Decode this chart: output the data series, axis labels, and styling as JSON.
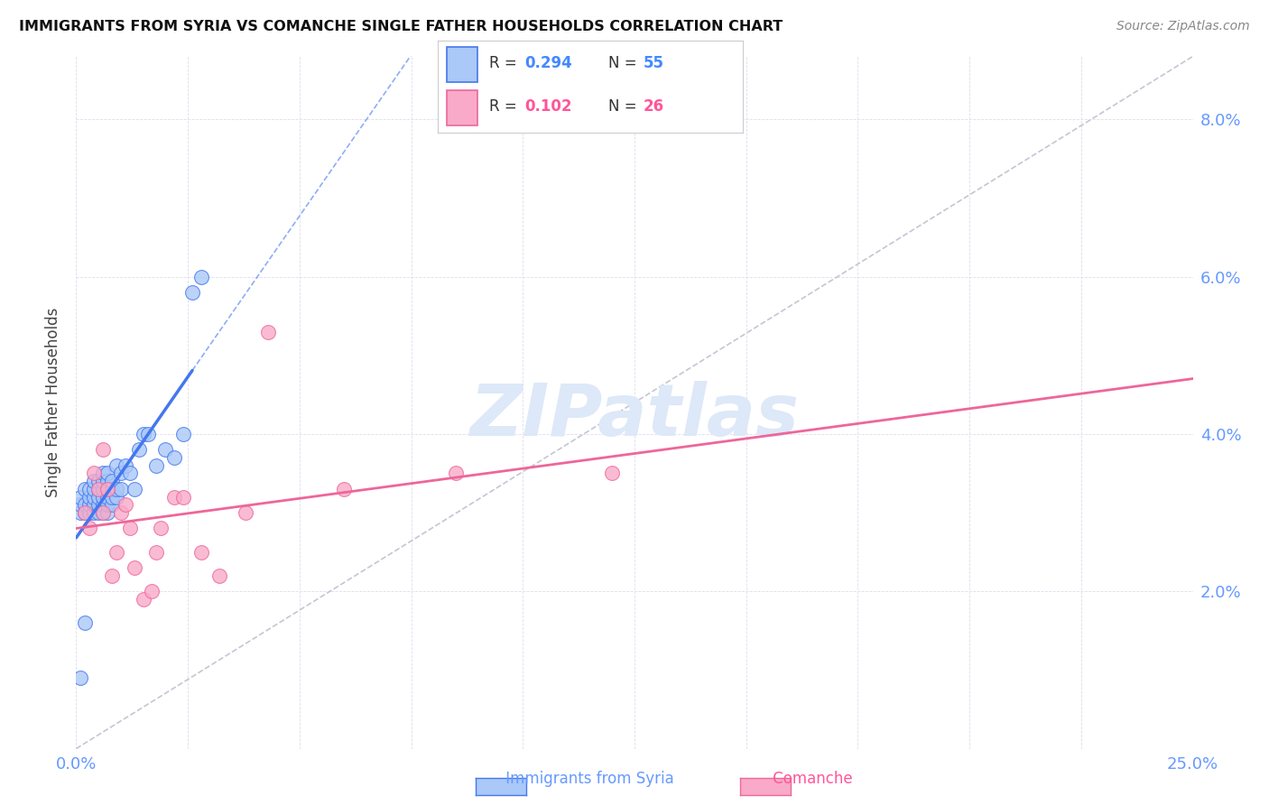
{
  "title": "IMMIGRANTS FROM SYRIA VS COMANCHE SINGLE FATHER HOUSEHOLDS CORRELATION CHART",
  "source": "Source: ZipAtlas.com",
  "ylabel": "Single Father Households",
  "syria_color": "#aac8f8",
  "comanche_color": "#f8aac8",
  "syria_line_color": "#4477ee",
  "comanche_line_color": "#ee6699",
  "diag_line_color": "#bbbbcc",
  "watermark_text": "ZIPatlas",
  "watermark_color": "#dde8f8",
  "background_color": "#ffffff",
  "grid_color": "#ddddee",
  "legend_r1_color": "#4488ff",
  "legend_r2_color": "#4488ff",
  "legend_n1_color": "#4488ff",
  "legend_n2_color": "#ff5599",
  "tick_color": "#6699ff",
  "syria_scatter_x": [
    0.001,
    0.001,
    0.001,
    0.002,
    0.002,
    0.002,
    0.003,
    0.003,
    0.003,
    0.003,
    0.004,
    0.004,
    0.004,
    0.004,
    0.004,
    0.005,
    0.005,
    0.005,
    0.005,
    0.005,
    0.006,
    0.006,
    0.006,
    0.006,
    0.006,
    0.006,
    0.007,
    0.007,
    0.007,
    0.007,
    0.007,
    0.007,
    0.008,
    0.008,
    0.008,
    0.008,
    0.009,
    0.009,
    0.009,
    0.01,
    0.01,
    0.011,
    0.012,
    0.013,
    0.014,
    0.015,
    0.016,
    0.018,
    0.02,
    0.022,
    0.024,
    0.026,
    0.028,
    0.001,
    0.002
  ],
  "syria_scatter_y": [
    0.03,
    0.031,
    0.032,
    0.03,
    0.031,
    0.033,
    0.03,
    0.031,
    0.032,
    0.033,
    0.03,
    0.031,
    0.032,
    0.033,
    0.034,
    0.03,
    0.031,
    0.032,
    0.033,
    0.034,
    0.03,
    0.031,
    0.032,
    0.033,
    0.034,
    0.035,
    0.03,
    0.031,
    0.032,
    0.033,
    0.034,
    0.035,
    0.031,
    0.032,
    0.033,
    0.034,
    0.032,
    0.033,
    0.036,
    0.033,
    0.035,
    0.036,
    0.035,
    0.033,
    0.038,
    0.04,
    0.04,
    0.036,
    0.038,
    0.037,
    0.04,
    0.058,
    0.06,
    0.009,
    0.016
  ],
  "comanche_scatter_x": [
    0.002,
    0.003,
    0.004,
    0.005,
    0.006,
    0.006,
    0.007,
    0.008,
    0.009,
    0.01,
    0.011,
    0.012,
    0.013,
    0.015,
    0.017,
    0.018,
    0.019,
    0.022,
    0.024,
    0.028,
    0.032,
    0.038,
    0.043,
    0.06,
    0.085,
    0.12
  ],
  "comanche_scatter_y": [
    0.03,
    0.028,
    0.035,
    0.033,
    0.03,
    0.038,
    0.033,
    0.022,
    0.025,
    0.03,
    0.031,
    0.028,
    0.023,
    0.019,
    0.02,
    0.025,
    0.028,
    0.032,
    0.032,
    0.025,
    0.022,
    0.03,
    0.053,
    0.033,
    0.035,
    0.035
  ],
  "xlim": [
    0.0,
    0.25
  ],
  "ylim": [
    0.0,
    0.088
  ],
  "xticks": [
    0.0,
    0.025,
    0.05,
    0.075,
    0.1,
    0.125,
    0.15,
    0.175,
    0.2,
    0.225,
    0.25
  ],
  "yticks": [
    0.0,
    0.02,
    0.04,
    0.06,
    0.08
  ],
  "ytick_labels": [
    "",
    "2.0%",
    "4.0%",
    "6.0%",
    "8.0%"
  ]
}
